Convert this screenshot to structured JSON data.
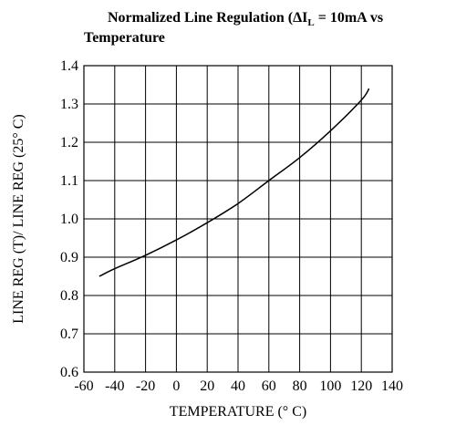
{
  "chart_data": {
    "type": "line",
    "title": {
      "line1_prefix": "Normalized Line Regulation (ΔI",
      "line1_subscript": "L",
      "line1_suffix": " = 10mA vs",
      "line2": "Temperature"
    },
    "xlabel": "TEMPERATURE (° C)",
    "ylabel": "LINE REG (T)/ LINE REG (25° C)",
    "xlim": [
      -60,
      140
    ],
    "ylim": [
      0.6,
      1.4
    ],
    "x_ticks": [
      -60,
      -40,
      -20,
      0,
      20,
      40,
      60,
      80,
      100,
      120,
      140
    ],
    "x_tick_labels": [
      "-60",
      "-40",
      "-20",
      "0",
      "20",
      "40",
      "60",
      "80",
      "100",
      "120",
      "140"
    ],
    "y_ticks": [
      0.6,
      0.7,
      0.8,
      0.9,
      1.0,
      1.1,
      1.2,
      1.3,
      1.4
    ],
    "y_tick_labels": [
      "0.6",
      "0.7",
      "0.8",
      "0.9",
      "1.0",
      "1.1",
      "1.2",
      "1.3",
      "1.4"
    ],
    "grid": true,
    "series": [
      {
        "x": [
          -50,
          -40,
          -20,
          0,
          20,
          40,
          60,
          80,
          100,
          120,
          125
        ],
        "y": [
          0.85,
          0.87,
          0.905,
          0.945,
          0.99,
          1.04,
          1.1,
          1.16,
          1.23,
          1.31,
          1.34
        ]
      }
    ]
  }
}
